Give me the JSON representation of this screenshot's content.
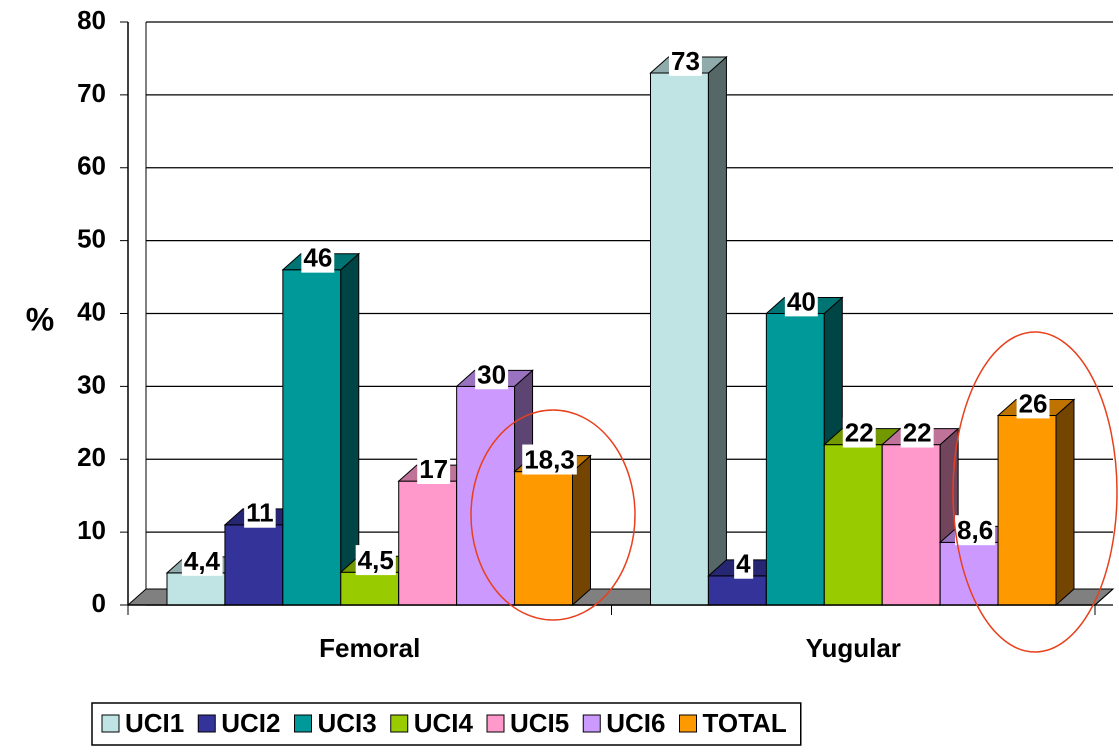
{
  "chart_data": {
    "type": "bar3d",
    "y_label": "%",
    "categories": [
      "Femoral",
      "Yugular"
    ],
    "series": [
      {
        "name": "UCI1",
        "color": "#c0e4e4",
        "values": [
          4.4,
          73
        ],
        "value_labels": [
          "4,4",
          "73"
        ]
      },
      {
        "name": "UCI2",
        "color": "#333399",
        "values": [
          11,
          4
        ],
        "value_labels": [
          "11",
          "4"
        ]
      },
      {
        "name": "UCI3",
        "color": "#009999",
        "values": [
          46,
          40
        ],
        "value_labels": [
          "46",
          "40"
        ]
      },
      {
        "name": "UCI4",
        "color": "#99cc00",
        "values": [
          4.5,
          22
        ],
        "value_labels": [
          "4,5",
          "22"
        ]
      },
      {
        "name": "UCI5",
        "color": "#ff99cc",
        "values": [
          17,
          22
        ],
        "value_labels": [
          "17",
          "22"
        ]
      },
      {
        "name": "UCI6",
        "color": "#cc99ff",
        "values": [
          30,
          8.6
        ],
        "value_labels": [
          "30",
          "8,6"
        ]
      },
      {
        "name": "TOTAL",
        "color": "#ff9900",
        "values": [
          18.3,
          26
        ],
        "value_labels": [
          "18,3",
          "26"
        ]
      }
    ],
    "ylim": [
      0,
      80
    ],
    "yticks": [
      0,
      10,
      20,
      30,
      40,
      50,
      60,
      70,
      80
    ],
    "grid": true,
    "legend": "bottom"
  }
}
